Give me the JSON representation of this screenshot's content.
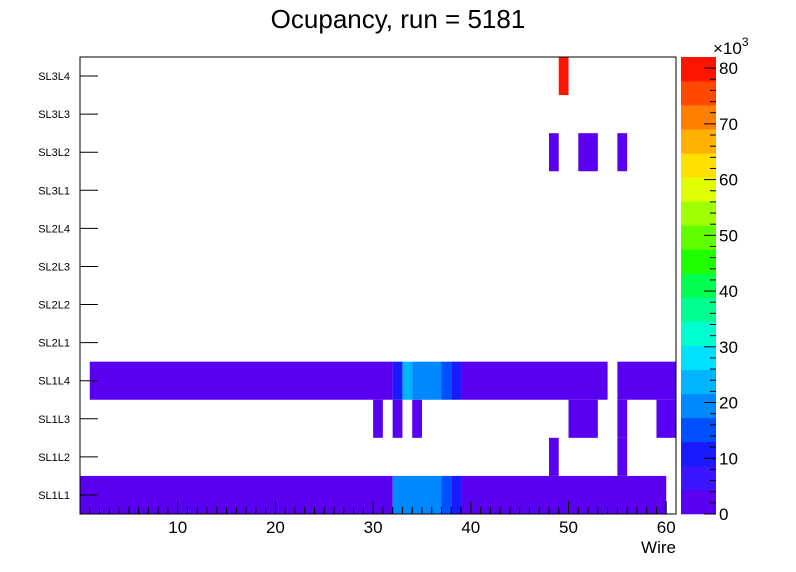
{
  "chart_data": {
    "type": "heatmap",
    "title": "Ocupancy, run = 5181",
    "xlabel": "Wire",
    "ylabel": "",
    "xlim": [
      0,
      61
    ],
    "x_ticks": [
      "10",
      "20",
      "30",
      "40",
      "50",
      "60"
    ],
    "y_categories": [
      "SL1L1",
      "SL1L2",
      "SL1L3",
      "SL1L4",
      "SL2L1",
      "SL2L2",
      "SL2L3",
      "SL2L4",
      "SL3L1",
      "SL3L2",
      "SL3L3",
      "SL3L4"
    ],
    "z_range": [
      0,
      82000
    ],
    "z_multiplier": "×10",
    "z_multiplier_exp": "3",
    "z_ticks": [
      "0",
      "10",
      "20",
      "30",
      "40",
      "50",
      "60",
      "70",
      "80"
    ],
    "z_palette": [
      "#5a00f0",
      "#3c14ff",
      "#1a1aff",
      "#0050ff",
      "#0088ff",
      "#00b4ff",
      "#00e0ff",
      "#00ffd0",
      "#00ff90",
      "#00ff50",
      "#20ff00",
      "#60ff00",
      "#a0ff00",
      "#e0ff00",
      "#ffe000",
      "#ffb000",
      "#ff8000",
      "#ff4800",
      "#ff1400"
    ],
    "cells": [
      {
        "layer": "SL1L1",
        "wires": [
          1,
          32
        ],
        "value": 3500
      },
      {
        "layer": "SL1L1",
        "wires": [
          33,
          37
        ],
        "value": 21000
      },
      {
        "layer": "SL1L1",
        "wires": [
          38,
          38
        ],
        "value": 16000
      },
      {
        "layer": "SL1L1",
        "wires": [
          39,
          39
        ],
        "value": 9000
      },
      {
        "layer": "SL1L1",
        "wires": [
          40,
          60
        ],
        "value": 3500
      },
      {
        "layer": "SL1L2",
        "wires": [
          49,
          49
        ],
        "value": 3000
      },
      {
        "layer": "SL1L2",
        "wires": [
          56,
          56
        ],
        "value": 3000
      },
      {
        "layer": "SL1L3",
        "wires": [
          31,
          31
        ],
        "value": 3000
      },
      {
        "layer": "SL1L3",
        "wires": [
          33,
          33
        ],
        "value": 3000
      },
      {
        "layer": "SL1L3",
        "wires": [
          35,
          35
        ],
        "value": 3000
      },
      {
        "layer": "SL1L3",
        "wires": [
          51,
          53
        ],
        "value": 3000
      },
      {
        "layer": "SL1L3",
        "wires": [
          56,
          56
        ],
        "value": 3000
      },
      {
        "layer": "SL1L3",
        "wires": [
          60,
          61
        ],
        "value": 3000
      },
      {
        "layer": "SL1L4",
        "wires": [
          2,
          32
        ],
        "value": 3500
      },
      {
        "layer": "SL1L4",
        "wires": [
          33,
          33
        ],
        "value": 11000
      },
      {
        "layer": "SL1L4",
        "wires": [
          34,
          34
        ],
        "value": 24000
      },
      {
        "layer": "SL1L4",
        "wires": [
          35,
          37
        ],
        "value": 21000
      },
      {
        "layer": "SL1L4",
        "wires": [
          38,
          38
        ],
        "value": 16000
      },
      {
        "layer": "SL1L4",
        "wires": [
          39,
          39
        ],
        "value": 9000
      },
      {
        "layer": "SL1L4",
        "wires": [
          40,
          54
        ],
        "value": 3500
      },
      {
        "layer": "SL1L4",
        "wires": [
          56,
          61
        ],
        "value": 3500
      },
      {
        "layer": "SL3L2",
        "wires": [
          49,
          49
        ],
        "value": 3000
      },
      {
        "layer": "SL3L2",
        "wires": [
          52,
          53
        ],
        "value": 3000
      },
      {
        "layer": "SL3L2",
        "wires": [
          56,
          56
        ],
        "value": 3000
      },
      {
        "layer": "SL3L4",
        "wires": [
          50,
          50
        ],
        "value": 80000
      }
    ]
  }
}
